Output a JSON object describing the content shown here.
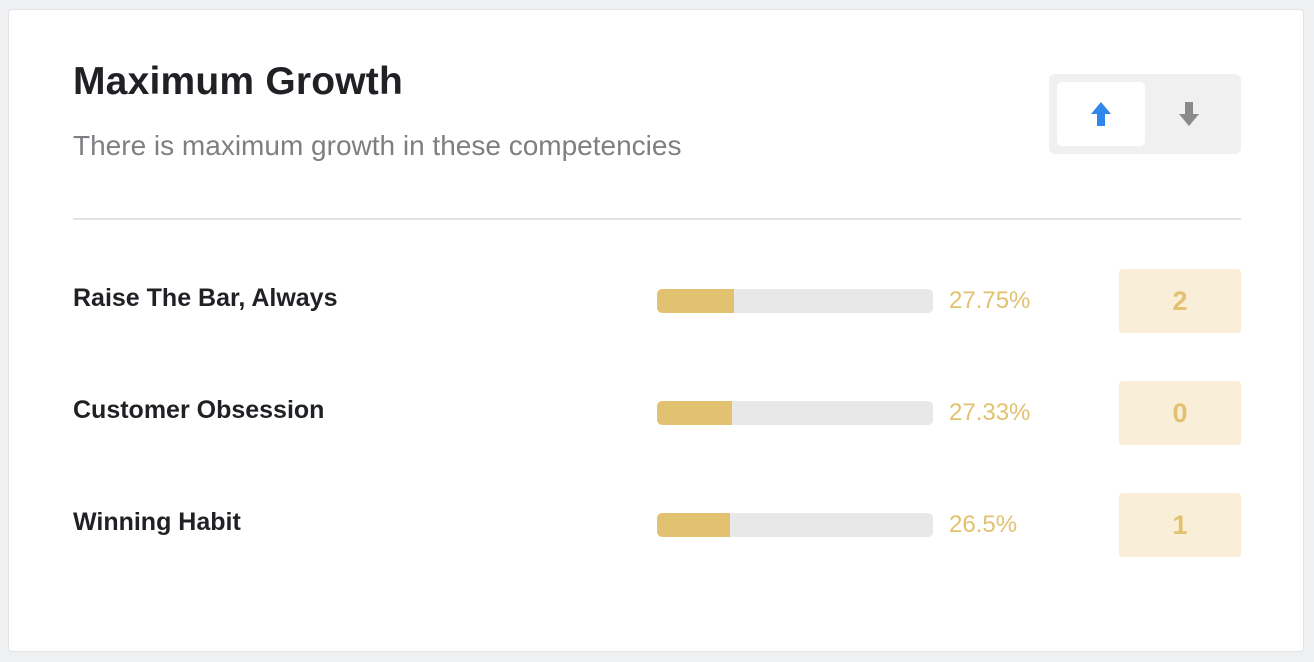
{
  "card": {
    "title": "Maximum Growth",
    "subtitle": "There is maximum growth in these competencies"
  },
  "sort_toggle": {
    "active": "up",
    "up_icon": "arrow-up-icon",
    "down_icon": "arrow-down-icon",
    "active_color": "#2f86eb",
    "inactive_color": "#8a8a8a"
  },
  "colors": {
    "accent": "#e2c170",
    "badge_bg": "#f9efd9",
    "track": "#e8e8e8"
  },
  "rows": [
    {
      "label": "Raise The Bar, Always",
      "percent_text": "27.75%",
      "percent_value": 27.75,
      "count": "2"
    },
    {
      "label": "Customer Obsession",
      "percent_text": "27.33%",
      "percent_value": 27.33,
      "count": "0"
    },
    {
      "label": "Winning Habit",
      "percent_text": "26.5%",
      "percent_value": 26.5,
      "count": "1"
    }
  ]
}
